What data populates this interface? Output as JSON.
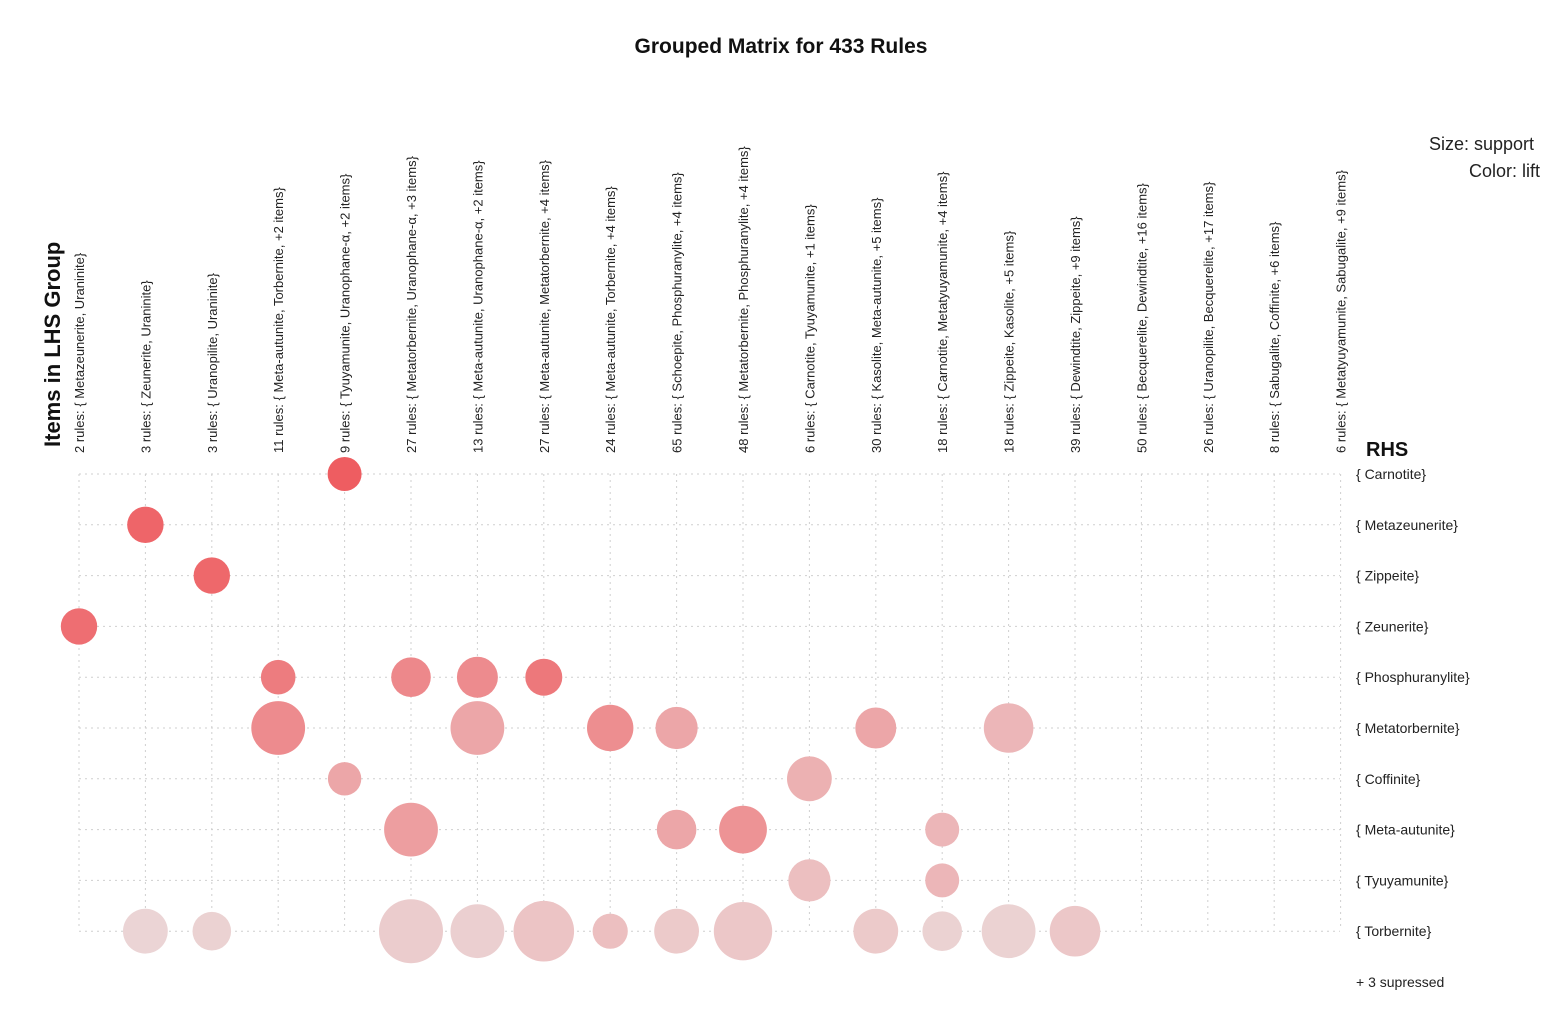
{
  "chart_data": {
    "type": "scatter",
    "title": "Grouped Matrix for 433 Rules",
    "ylabel": "Items in LHS Group",
    "rhs_label": "RHS",
    "legend": {
      "size": "Size: support",
      "color": "Color: lift"
    },
    "footer": "+ 3 supressed",
    "columns": [
      "2 rules: { Metazeunerite,  Uraninite}",
      "3 rules: { Zeunerite,  Uraninite}",
      "3 rules: { Uranopilite,  Uraninite}",
      "11 rules: { Meta-autunite,  Torbernite, +2 items}",
      "9 rules: { Tyuyamunite,  Uranophane-α, +2 items}",
      "27 rules: { Metatorbernite,  Uranophane-α, +3 items}",
      "13 rules: { Meta-autunite,  Uranophane-α, +2 items}",
      "27 rules: { Meta-autunite,  Metatorbernite, +4 items}",
      "24 rules: { Meta-autunite,  Torbernite, +4 items}",
      "65 rules: { Schoepite,  Phosphuranylite, +4 items}",
      "48 rules: { Metatorbernite,  Phosphuranylite, +4 items}",
      "6 rules: { Carnotite,  Tyuyamunite, +1 items}",
      "30 rules: { Kasolite,  Meta-autunite, +5 items}",
      "18 rules: { Carnotite,  Metatyuyamunite, +4 items}",
      "18 rules: { Zippeite,  Kasolite, +5 items}",
      "39 rules: { Dewindtite,  Zippeite, +9 items}",
      "50 rules: { Becquerelite,  Dewindtite, +16 items}",
      "26 rules: { Uranopilite,  Becquerelite, +17 items}",
      "8 rules: { Sabugalite,  Coffinite, +6 items}",
      "6 rules: { Metatyuyamunite,  Sabugalite, +9 items}"
    ],
    "rows": [
      "{ Carnotite}",
      "{ Metazeunerite}",
      "{ Zippeite}",
      "{ Zeunerite}",
      "{ Phosphuranylite}",
      "{ Metatorbernite}",
      "{ Coffinite}",
      "{ Meta-autunite}",
      "{ Tyuyamunite}",
      "{ Torbernite}"
    ],
    "points": [
      {
        "col": 4,
        "row": 0,
        "support": 0.14,
        "lift": 0.98
      },
      {
        "col": 1,
        "row": 1,
        "support": 0.18,
        "lift": 0.92
      },
      {
        "col": 2,
        "row": 2,
        "support": 0.18,
        "lift": 0.9
      },
      {
        "col": 0,
        "row": 3,
        "support": 0.18,
        "lift": 0.85
      },
      {
        "col": 3,
        "row": 4,
        "support": 0.15,
        "lift": 0.75
      },
      {
        "col": 5,
        "row": 4,
        "support": 0.24,
        "lift": 0.66
      },
      {
        "col": 6,
        "row": 4,
        "support": 0.27,
        "lift": 0.64
      },
      {
        "col": 7,
        "row": 4,
        "support": 0.19,
        "lift": 0.78
      },
      {
        "col": 3,
        "row": 5,
        "support": 0.62,
        "lift": 0.64
      },
      {
        "col": 6,
        "row": 5,
        "support": 0.62,
        "lift": 0.44
      },
      {
        "col": 8,
        "row": 5,
        "support": 0.4,
        "lift": 0.62
      },
      {
        "col": 9,
        "row": 5,
        "support": 0.3,
        "lift": 0.44
      },
      {
        "col": 12,
        "row": 5,
        "support": 0.27,
        "lift": 0.44
      },
      {
        "col": 14,
        "row": 5,
        "support": 0.49,
        "lift": 0.32
      },
      {
        "col": 4,
        "row": 6,
        "support": 0.13,
        "lift": 0.44
      },
      {
        "col": 11,
        "row": 6,
        "support": 0.36,
        "lift": 0.36
      },
      {
        "col": 5,
        "row": 7,
        "support": 0.62,
        "lift": 0.5
      },
      {
        "col": 9,
        "row": 7,
        "support": 0.24,
        "lift": 0.44
      },
      {
        "col": 10,
        "row": 7,
        "support": 0.44,
        "lift": 0.58
      },
      {
        "col": 13,
        "row": 7,
        "support": 0.14,
        "lift": 0.32
      },
      {
        "col": 11,
        "row": 8,
        "support": 0.3,
        "lift": 0.26
      },
      {
        "col": 13,
        "row": 8,
        "support": 0.14,
        "lift": 0.32
      },
      {
        "col": 1,
        "row": 9,
        "support": 0.36,
        "lift": 0.1
      },
      {
        "col": 2,
        "row": 9,
        "support": 0.22,
        "lift": 0.12
      },
      {
        "col": 5,
        "row": 9,
        "support": 1.0,
        "lift": 0.16
      },
      {
        "col": 6,
        "row": 9,
        "support": 0.62,
        "lift": 0.14
      },
      {
        "col": 7,
        "row": 9,
        "support": 0.86,
        "lift": 0.22
      },
      {
        "col": 8,
        "row": 9,
        "support": 0.16,
        "lift": 0.26
      },
      {
        "col": 9,
        "row": 9,
        "support": 0.36,
        "lift": 0.18
      },
      {
        "col": 10,
        "row": 9,
        "support": 0.78,
        "lift": 0.2
      },
      {
        "col": 12,
        "row": 9,
        "support": 0.36,
        "lift": 0.18
      },
      {
        "col": 13,
        "row": 9,
        "support": 0.24,
        "lift": 0.12
      },
      {
        "col": 14,
        "row": 9,
        "support": 0.62,
        "lift": 0.12
      },
      {
        "col": 15,
        "row": 9,
        "support": 0.52,
        "lift": 0.2
      }
    ],
    "color_low": "#ebe2e2",
    "color_high": "#ee5a5e",
    "grid": true
  }
}
